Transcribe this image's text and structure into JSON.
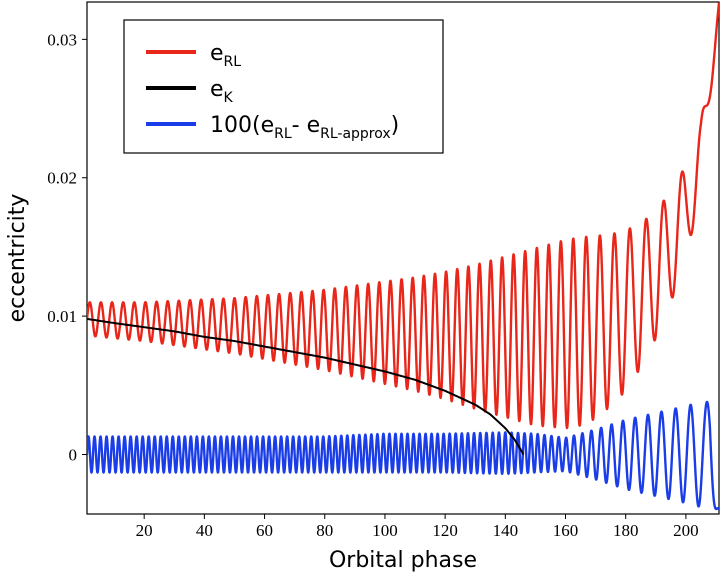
{
  "chart_data": {
    "type": "line",
    "title": "",
    "xlabel": "Orbital phase",
    "ylabel": "eccentricity",
    "xlim": [
      1,
      211
    ],
    "ylim": [
      -0.0043,
      0.0327
    ],
    "x_ticks": [
      20,
      40,
      60,
      80,
      100,
      120,
      140,
      160,
      180,
      200
    ],
    "x_tick_labels": [
      "20",
      "40",
      "60",
      "80",
      "100",
      "120",
      "140",
      "160",
      "180",
      "200"
    ],
    "y_ticks": [
      0,
      0.01,
      0.02,
      0.03
    ],
    "y_tick_labels": [
      "0",
      "0.01",
      "0.02",
      "0.03"
    ],
    "grid": false,
    "legend_position": "top-left",
    "series": [
      {
        "legend_base": "e",
        "legend_sub": "RL",
        "color": "#e8261a",
        "x": [
          1,
          10,
          20,
          30,
          40,
          50,
          60,
          70,
          80,
          90,
          100,
          110,
          120,
          130,
          140,
          150,
          160,
          165,
          170,
          175,
          180,
          185,
          190,
          195,
          200,
          205,
          211
        ],
        "y": [
          0.0098,
          0.0097,
          0.0096,
          0.0095,
          0.0094,
          0.0093,
          0.0092,
          0.0091,
          0.009,
          0.0089,
          0.0088,
          0.0087,
          0.0086,
          0.0085,
          0.0085,
          0.0085,
          0.0087,
          0.0089,
          0.0092,
          0.0097,
          0.0104,
          0.0115,
          0.013,
          0.015,
          0.0175,
          0.0215,
          0.0325
        ],
        "amplitude": [
          0.0012,
          0.0013,
          0.0014,
          0.0016,
          0.0018,
          0.002,
          0.0023,
          0.0026,
          0.0029,
          0.0033,
          0.0037,
          0.0041,
          0.0046,
          0.0052,
          0.0058,
          0.0064,
          0.0068,
          0.0068,
          0.0066,
          0.0062,
          0.0058,
          0.0052,
          0.0046,
          0.004,
          0.0034,
          0.0025,
          0.0004
        ],
        "period": [
          3.7,
          3.7,
          3.7,
          3.7,
          3.7,
          3.7,
          3.7,
          3.7,
          3.7,
          3.7,
          3.7,
          3.7,
          3.7,
          3.7,
          3.8,
          3.9,
          4.1,
          4.3,
          4.6,
          4.9,
          5.2,
          5.5,
          5.8,
          6.1,
          6.4,
          6.8,
          7.2
        ]
      },
      {
        "legend_base": "e",
        "legend_sub": "K",
        "color": "#000000",
        "x": [
          1,
          10,
          20,
          30,
          40,
          50,
          60,
          70,
          80,
          90,
          100,
          110,
          120,
          130,
          135,
          140,
          143,
          145,
          146
        ],
        "y": [
          0.0098,
          0.0095,
          0.0092,
          0.0089,
          0.0085,
          0.0082,
          0.0078,
          0.0074,
          0.007,
          0.0065,
          0.006,
          0.0054,
          0.0046,
          0.0036,
          0.0029,
          0.0019,
          0.0011,
          0.0004,
          0.0
        ]
      },
      {
        "legend_base": "100(e",
        "legend_sub": "RL",
        "legend_mid": "- e",
        "legend_sub2": "RL-approx",
        "legend_end": ")",
        "color": "#1a3de8",
        "x": [
          1,
          20,
          40,
          60,
          80,
          100,
          120,
          140,
          150,
          160,
          170,
          180,
          190,
          200,
          205,
          208,
          211
        ],
        "y": [
          0.0,
          0.0,
          0.0,
          0.0,
          0.0,
          0.0001,
          0.0001,
          0.0001,
          0.0001,
          0.0,
          0.0,
          0.0,
          0.0,
          0.0,
          0.0,
          0.0,
          -0.004
        ],
        "amplitude": [
          0.0013,
          0.0013,
          0.0013,
          0.0013,
          0.0013,
          0.0014,
          0.0014,
          0.0015,
          0.0014,
          0.0012,
          0.0018,
          0.0025,
          0.003,
          0.0035,
          0.0038,
          0.0038,
          0.0
        ],
        "period": [
          2.0,
          2.0,
          2.0,
          2.0,
          2.0,
          2.0,
          2.0,
          2.1,
          2.2,
          2.5,
          3.2,
          4.0,
          4.5,
          5.0,
          5.5,
          6.0,
          6.0
        ]
      }
    ]
  }
}
